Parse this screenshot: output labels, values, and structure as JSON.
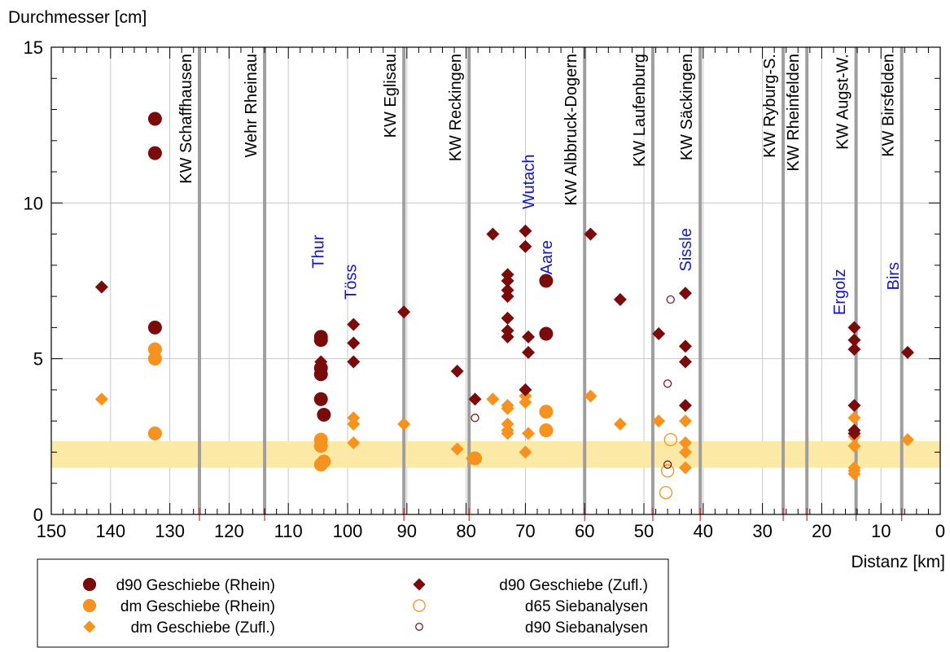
{
  "chart_data": {
    "type": "scatter",
    "title": "",
    "ylabel": "Durchmesser [cm]",
    "xlabel": "Distanz [km]",
    "xlim": [
      150,
      0
    ],
    "ylim": [
      0,
      15
    ],
    "x_ticks": [
      150,
      140,
      130,
      120,
      110,
      100,
      90,
      80,
      70,
      60,
      50,
      40,
      30,
      20,
      10,
      0
    ],
    "y_ticks": [
      0,
      5,
      10,
      15
    ],
    "grid": true,
    "band": {
      "y_from": 1.5,
      "y_to": 2.35,
      "color": "#fce9a6"
    },
    "plants": [
      {
        "km": 125,
        "label": "KW Schaffhausen"
      },
      {
        "km": 114,
        "label": "Wehr Rheinau"
      },
      {
        "km": 90.5,
        "label": "KW Eglisau"
      },
      {
        "km": 79.5,
        "label": "KW Reckingen"
      },
      {
        "km": 60,
        "label": "KW Albbruck-Dogern"
      },
      {
        "km": 48.5,
        "label": "KW Laufenburg"
      },
      {
        "km": 40.5,
        "label": "KW Säckingen"
      },
      {
        "km": 26.5,
        "label": "KW Ryburg-S."
      },
      {
        "km": 22.5,
        "label": "KW Rheinfelden"
      },
      {
        "km": 14.2,
        "label": "KW Augst-W."
      },
      {
        "km": 6.5,
        "label": "KW Birsfelden"
      }
    ],
    "tributaries": [
      {
        "km": 105,
        "y": 7.9,
        "label": "Thur"
      },
      {
        "km": 99.5,
        "y": 6.9,
        "label": "Töss"
      },
      {
        "km": 69.5,
        "y": 9.8,
        "label": "Wutach"
      },
      {
        "km": 66.5,
        "y": 7.7,
        "label": "Aare"
      },
      {
        "km": 43,
        "y": 7.8,
        "label": "Sissle"
      },
      {
        "km": 17,
        "y": 6.4,
        "label": "Ergolz"
      },
      {
        "km": 8,
        "y": 7.2,
        "label": "Birs"
      }
    ],
    "legend_position": "bottom-left",
    "series": [
      {
        "name": "d90 Geschiebe (Rhein)",
        "marker": "circle",
        "color": "#7a0b0b",
        "filled": true,
        "points": [
          [
            132.5,
            12.7
          ],
          [
            132.5,
            11.6
          ],
          [
            132.5,
            6.0
          ],
          [
            104.5,
            5.7
          ],
          [
            104.5,
            5.6
          ],
          [
            104.5,
            4.7
          ],
          [
            104.5,
            4.5
          ],
          [
            104.5,
            3.7
          ],
          [
            104,
            3.2
          ],
          [
            66.5,
            7.5
          ],
          [
            66.5,
            5.8
          ]
        ]
      },
      {
        "name": "dm Geschiebe (Rhein)",
        "marker": "circle",
        "color": "#f7921e",
        "filled": true,
        "points": [
          [
            132.5,
            5.3
          ],
          [
            132.5,
            5.0
          ],
          [
            132.5,
            2.6
          ],
          [
            104.5,
            2.4
          ],
          [
            104.5,
            2.2
          ],
          [
            104.5,
            1.6
          ],
          [
            104,
            1.7
          ],
          [
            78.5,
            1.8
          ],
          [
            66.5,
            3.3
          ],
          [
            66.5,
            2.7
          ]
        ]
      },
      {
        "name": "dm Geschiebe (Zufl.)",
        "marker": "diamond",
        "color": "#f7921e",
        "filled": true,
        "points": [
          [
            141.5,
            3.7
          ],
          [
            99,
            3.1
          ],
          [
            99,
            2.9
          ],
          [
            99,
            2.3
          ],
          [
            90.5,
            2.9
          ],
          [
            81.5,
            2.1
          ],
          [
            79,
            1.8
          ],
          [
            75.5,
            3.7
          ],
          [
            73,
            3.5
          ],
          [
            73,
            3.4
          ],
          [
            73,
            2.9
          ],
          [
            73,
            2.7
          ],
          [
            73,
            2.6
          ],
          [
            70,
            3.8
          ],
          [
            70,
            3.6
          ],
          [
            69.5,
            2.6
          ],
          [
            70,
            2.0
          ],
          [
            59,
            3.8
          ],
          [
            54,
            2.9
          ],
          [
            47.5,
            3.0
          ],
          [
            43,
            3.0
          ],
          [
            43,
            2.3
          ],
          [
            43,
            2.0
          ],
          [
            43,
            1.5
          ],
          [
            14.5,
            3.1
          ],
          [
            14.5,
            2.5
          ],
          [
            14.5,
            2.2
          ],
          [
            14.5,
            1.5
          ],
          [
            14.5,
            1.4
          ],
          [
            14.5,
            1.3
          ],
          [
            5.5,
            2.4
          ]
        ]
      },
      {
        "name": "d90 Geschiebe (Zufl.)",
        "marker": "diamond",
        "color": "#7a0b0b",
        "filled": true,
        "points": [
          [
            141.5,
            7.3
          ],
          [
            104.5,
            4.9
          ],
          [
            99,
            6.1
          ],
          [
            99,
            5.5
          ],
          [
            99,
            4.9
          ],
          [
            90.5,
            6.5
          ],
          [
            81.5,
            4.6
          ],
          [
            78.5,
            3.7
          ],
          [
            75.5,
            9.0
          ],
          [
            73,
            7.7
          ],
          [
            73,
            7.5
          ],
          [
            73,
            7.2
          ],
          [
            73,
            7.0
          ],
          [
            73,
            6.3
          ],
          [
            73,
            5.9
          ],
          [
            73,
            5.7
          ],
          [
            70,
            9.1
          ],
          [
            70,
            8.6
          ],
          [
            69.5,
            5.7
          ],
          [
            69.5,
            5.2
          ],
          [
            70,
            4.0
          ],
          [
            59,
            9.0
          ],
          [
            54,
            6.9
          ],
          [
            47.5,
            5.8
          ],
          [
            43,
            7.1
          ],
          [
            43,
            5.4
          ],
          [
            43,
            4.9
          ],
          [
            43,
            3.5
          ],
          [
            14.5,
            6.0
          ],
          [
            14.5,
            5.6
          ],
          [
            14.5,
            5.3
          ],
          [
            14.5,
            3.5
          ],
          [
            14.5,
            2.7
          ],
          [
            14.5,
            2.6
          ],
          [
            5.5,
            5.2
          ]
        ]
      },
      {
        "name": "d65 Siebanalysen",
        "marker": "circle",
        "color": "#f7921e",
        "filled": false,
        "points": [
          [
            78.5,
            1.8
          ],
          [
            45.5,
            2.4
          ],
          [
            46,
            1.4
          ],
          [
            46.3,
            0.7
          ]
        ]
      },
      {
        "name": "d90 Siebanalysen",
        "marker": "circle-small",
        "color": "#7a0b0b",
        "filled": false,
        "points": [
          [
            78.5,
            3.1
          ],
          [
            45.5,
            6.9
          ],
          [
            46,
            4.2
          ],
          [
            46,
            1.6
          ]
        ]
      }
    ]
  }
}
